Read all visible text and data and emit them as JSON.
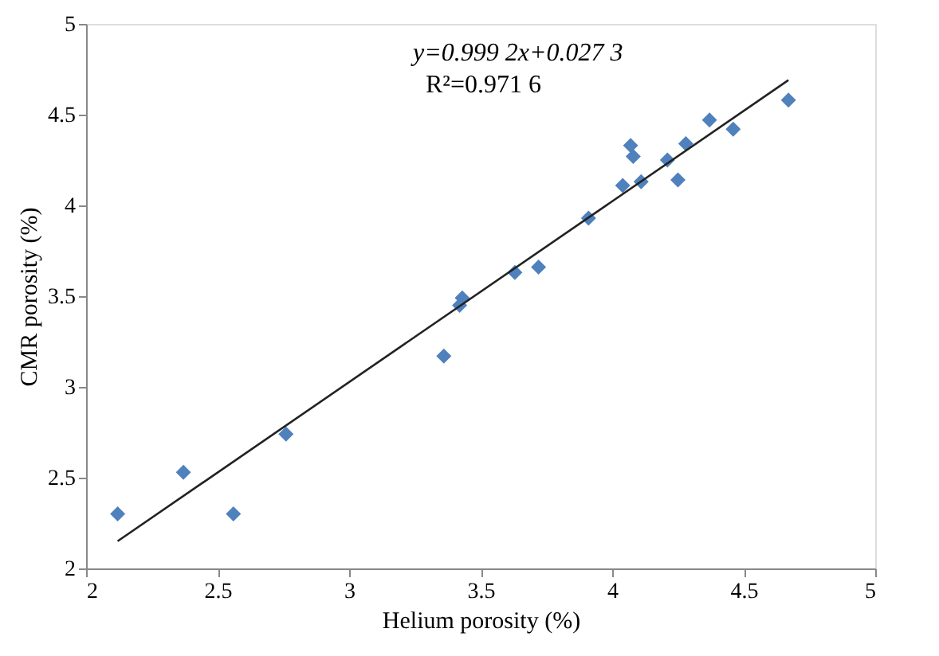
{
  "chart_data": {
    "type": "scatter",
    "xlabel": "Helium porosity (%)",
    "ylabel": "CMR porosity (%)",
    "xlim": [
      2,
      5
    ],
    "ylim": [
      2,
      5
    ],
    "xticks": [
      2,
      2.5,
      3,
      3.5,
      4,
      4.5,
      5
    ],
    "yticks": [
      2,
      2.5,
      3,
      3.5,
      4,
      4.5,
      5
    ],
    "grid": false,
    "annotations": [
      "y=0.999 2x+0.027 3",
      "R²=0.971 6"
    ],
    "series": [
      {
        "marker": "diamond",
        "color": "#4f81bd",
        "x": [
          2.12,
          2.37,
          2.56,
          2.76,
          3.36,
          3.43,
          3.42,
          3.63,
          3.72,
          3.91,
          4.04,
          4.07,
          4.08,
          4.11,
          4.21,
          4.25,
          4.28,
          4.37,
          4.46,
          4.67
        ],
        "values": [
          2.3,
          2.53,
          2.3,
          2.74,
          3.17,
          3.49,
          3.45,
          3.63,
          3.66,
          3.93,
          4.11,
          4.33,
          4.27,
          4.13,
          4.25,
          4.14,
          4.34,
          4.47,
          4.42,
          4.58
        ]
      },
      {
        "type": "line",
        "line_style": "solid",
        "color": "#222222",
        "x": [
          2.12,
          4.67
        ],
        "values": [
          2.15,
          4.69
        ]
      }
    ]
  }
}
